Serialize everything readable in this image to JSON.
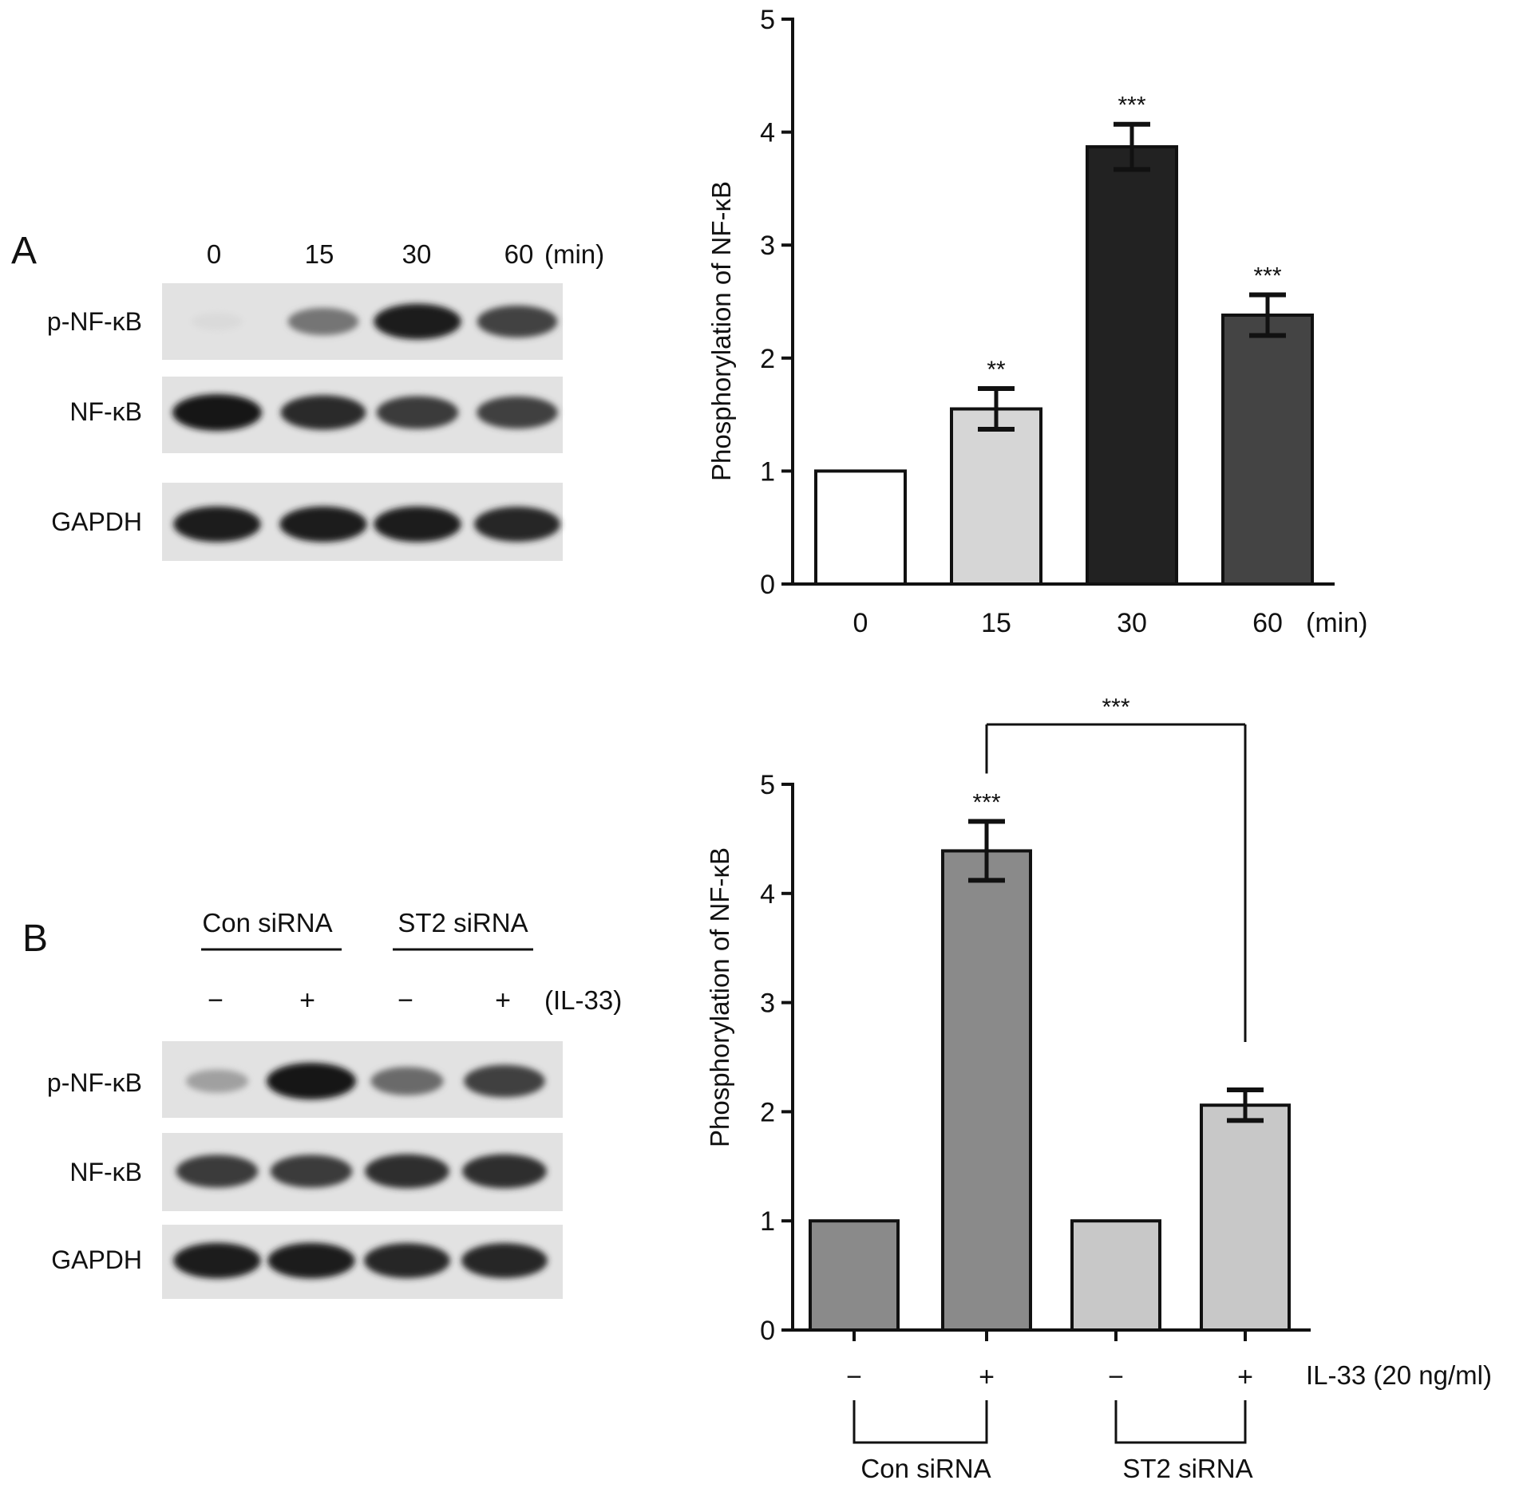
{
  "panel_A": {
    "letter": "A",
    "blot": {
      "lanes": [
        "0",
        "15",
        "30",
        "60"
      ],
      "lanes_unit": "(min)",
      "rows": [
        "p-NF-κB",
        "NF-κB",
        "GAPDH"
      ],
      "band_intensity": {
        "p-NF-κB": [
          0.08,
          0.55,
          0.95,
          0.78
        ],
        "NF-κB": [
          1.0,
          0.9,
          0.82,
          0.8
        ],
        "GAPDH": [
          0.95,
          0.95,
          0.95,
          0.92
        ]
      }
    }
  },
  "panel_B": {
    "letter": "B",
    "blot": {
      "group_labels": [
        "Con siRNA",
        "ST2 siRNA"
      ],
      "treatment": [
        "−",
        "+",
        "−",
        "+"
      ],
      "treatment_label": "(IL-33)",
      "rows": [
        "p-NF-κB",
        "NF-κB",
        "GAPDH"
      ],
      "band_intensity": {
        "p-NF-κB": [
          0.35,
          1.0,
          0.6,
          0.8
        ],
        "NF-κB": [
          0.82,
          0.82,
          0.88,
          0.88
        ],
        "GAPDH": [
          0.95,
          0.95,
          0.92,
          0.92
        ]
      }
    }
  },
  "chart_data": [
    {
      "type": "bar",
      "ylabel": "Phosphorylation of NF-κB",
      "ylim": [
        0,
        5
      ],
      "yticks": [
        "0",
        "1",
        "2",
        "3",
        "4",
        "5"
      ],
      "categories": [
        "0",
        "15",
        "30",
        "60"
      ],
      "x_unit": "(min)",
      "values": [
        1.0,
        1.55,
        3.87,
        2.38
      ],
      "errors": [
        0,
        0.18,
        0.2,
        0.18
      ],
      "significance": [
        "",
        "**",
        "***",
        "***"
      ],
      "colors": [
        "#ffffff",
        "#d6d6d6",
        "#222222",
        "#444444"
      ]
    },
    {
      "type": "bar",
      "ylabel": "Phosphorylation of NF-κB",
      "ylim": [
        0,
        5
      ],
      "yticks": [
        "0",
        "1",
        "2",
        "3",
        "4",
        "5"
      ],
      "categories": [
        "−",
        "+",
        "−",
        "+"
      ],
      "treatment_label": "IL-33 (20 ng/ml)",
      "groups": [
        "Con siRNA",
        "ST2 siRNA"
      ],
      "values": [
        1.0,
        4.39,
        1.0,
        2.06
      ],
      "errors": [
        0,
        0.27,
        0,
        0.14
      ],
      "significance": [
        "",
        "***",
        "",
        ""
      ],
      "comparison": {
        "from": 1,
        "to": 3,
        "label": "***"
      },
      "colors": [
        "#8a8a8a",
        "#8a8a8a",
        "#c8c8c8",
        "#c8c8c8"
      ]
    }
  ]
}
